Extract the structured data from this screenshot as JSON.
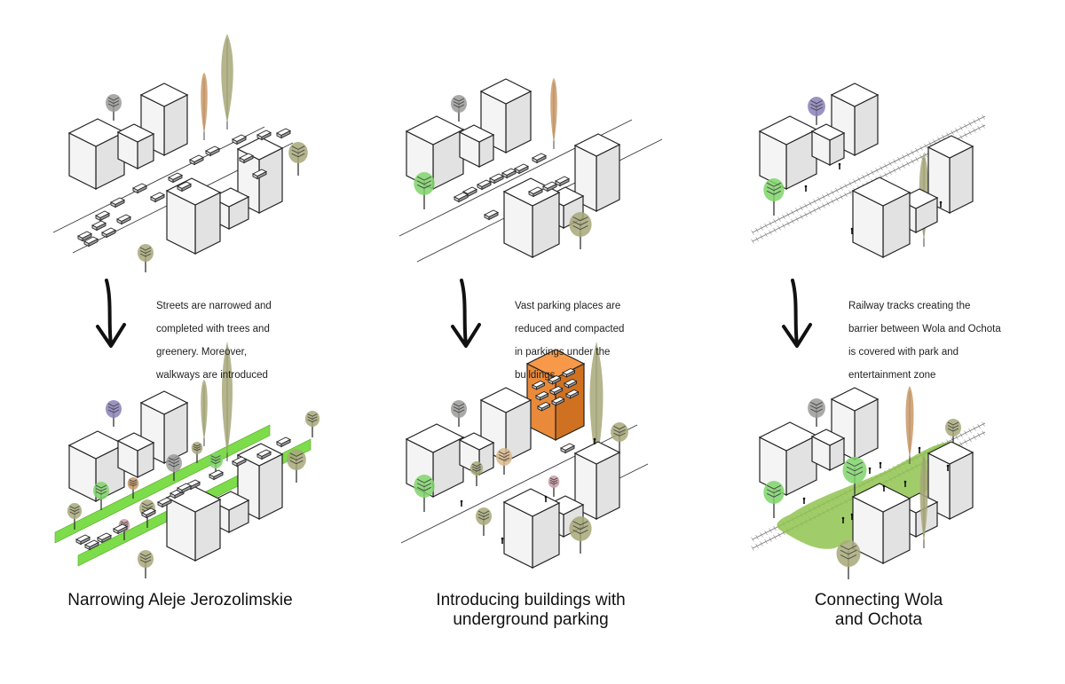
{
  "panels": [
    {
      "id": "narrowing",
      "note_lines": [
        "Streets are narrowed and",
        "completed with trees and",
        "greenery. Moreover,",
        "walkways are introduced"
      ],
      "caption_lines": [
        "Narrowing Aleje Jerozolimskie"
      ]
    },
    {
      "id": "parking",
      "note_lines": [
        "Vast parking places are",
        "reduced and compacted",
        "in parkings under the",
        "buildings"
      ],
      "caption_lines": [
        "Introducing buildings with",
        "underground parking"
      ]
    },
    {
      "id": "connecting",
      "note_lines": [
        "Railway tracks creating the",
        "barrier between Wola and Ochota",
        "is covered with park and",
        "entertainment zone"
      ],
      "caption_lines": [
        "Connecting Wola",
        "and Ochota"
      ]
    }
  ],
  "colors": {
    "green_strip": "#7ddc4a",
    "park": "#8fc44f",
    "parking_building": "#e88a3a",
    "building_left": "#f4f4f4",
    "building_right": "#e2e2e2",
    "building_top": "#ffffff",
    "tree_green": "#7fd36a",
    "tree_olive": "#a7a878",
    "tree_gray": "#9a9a98",
    "tree_purple": "#8a80b8",
    "tree_orange": "#c99866",
    "tree_pink": "#c99aa3",
    "tree_tan": "#d9b98a"
  }
}
